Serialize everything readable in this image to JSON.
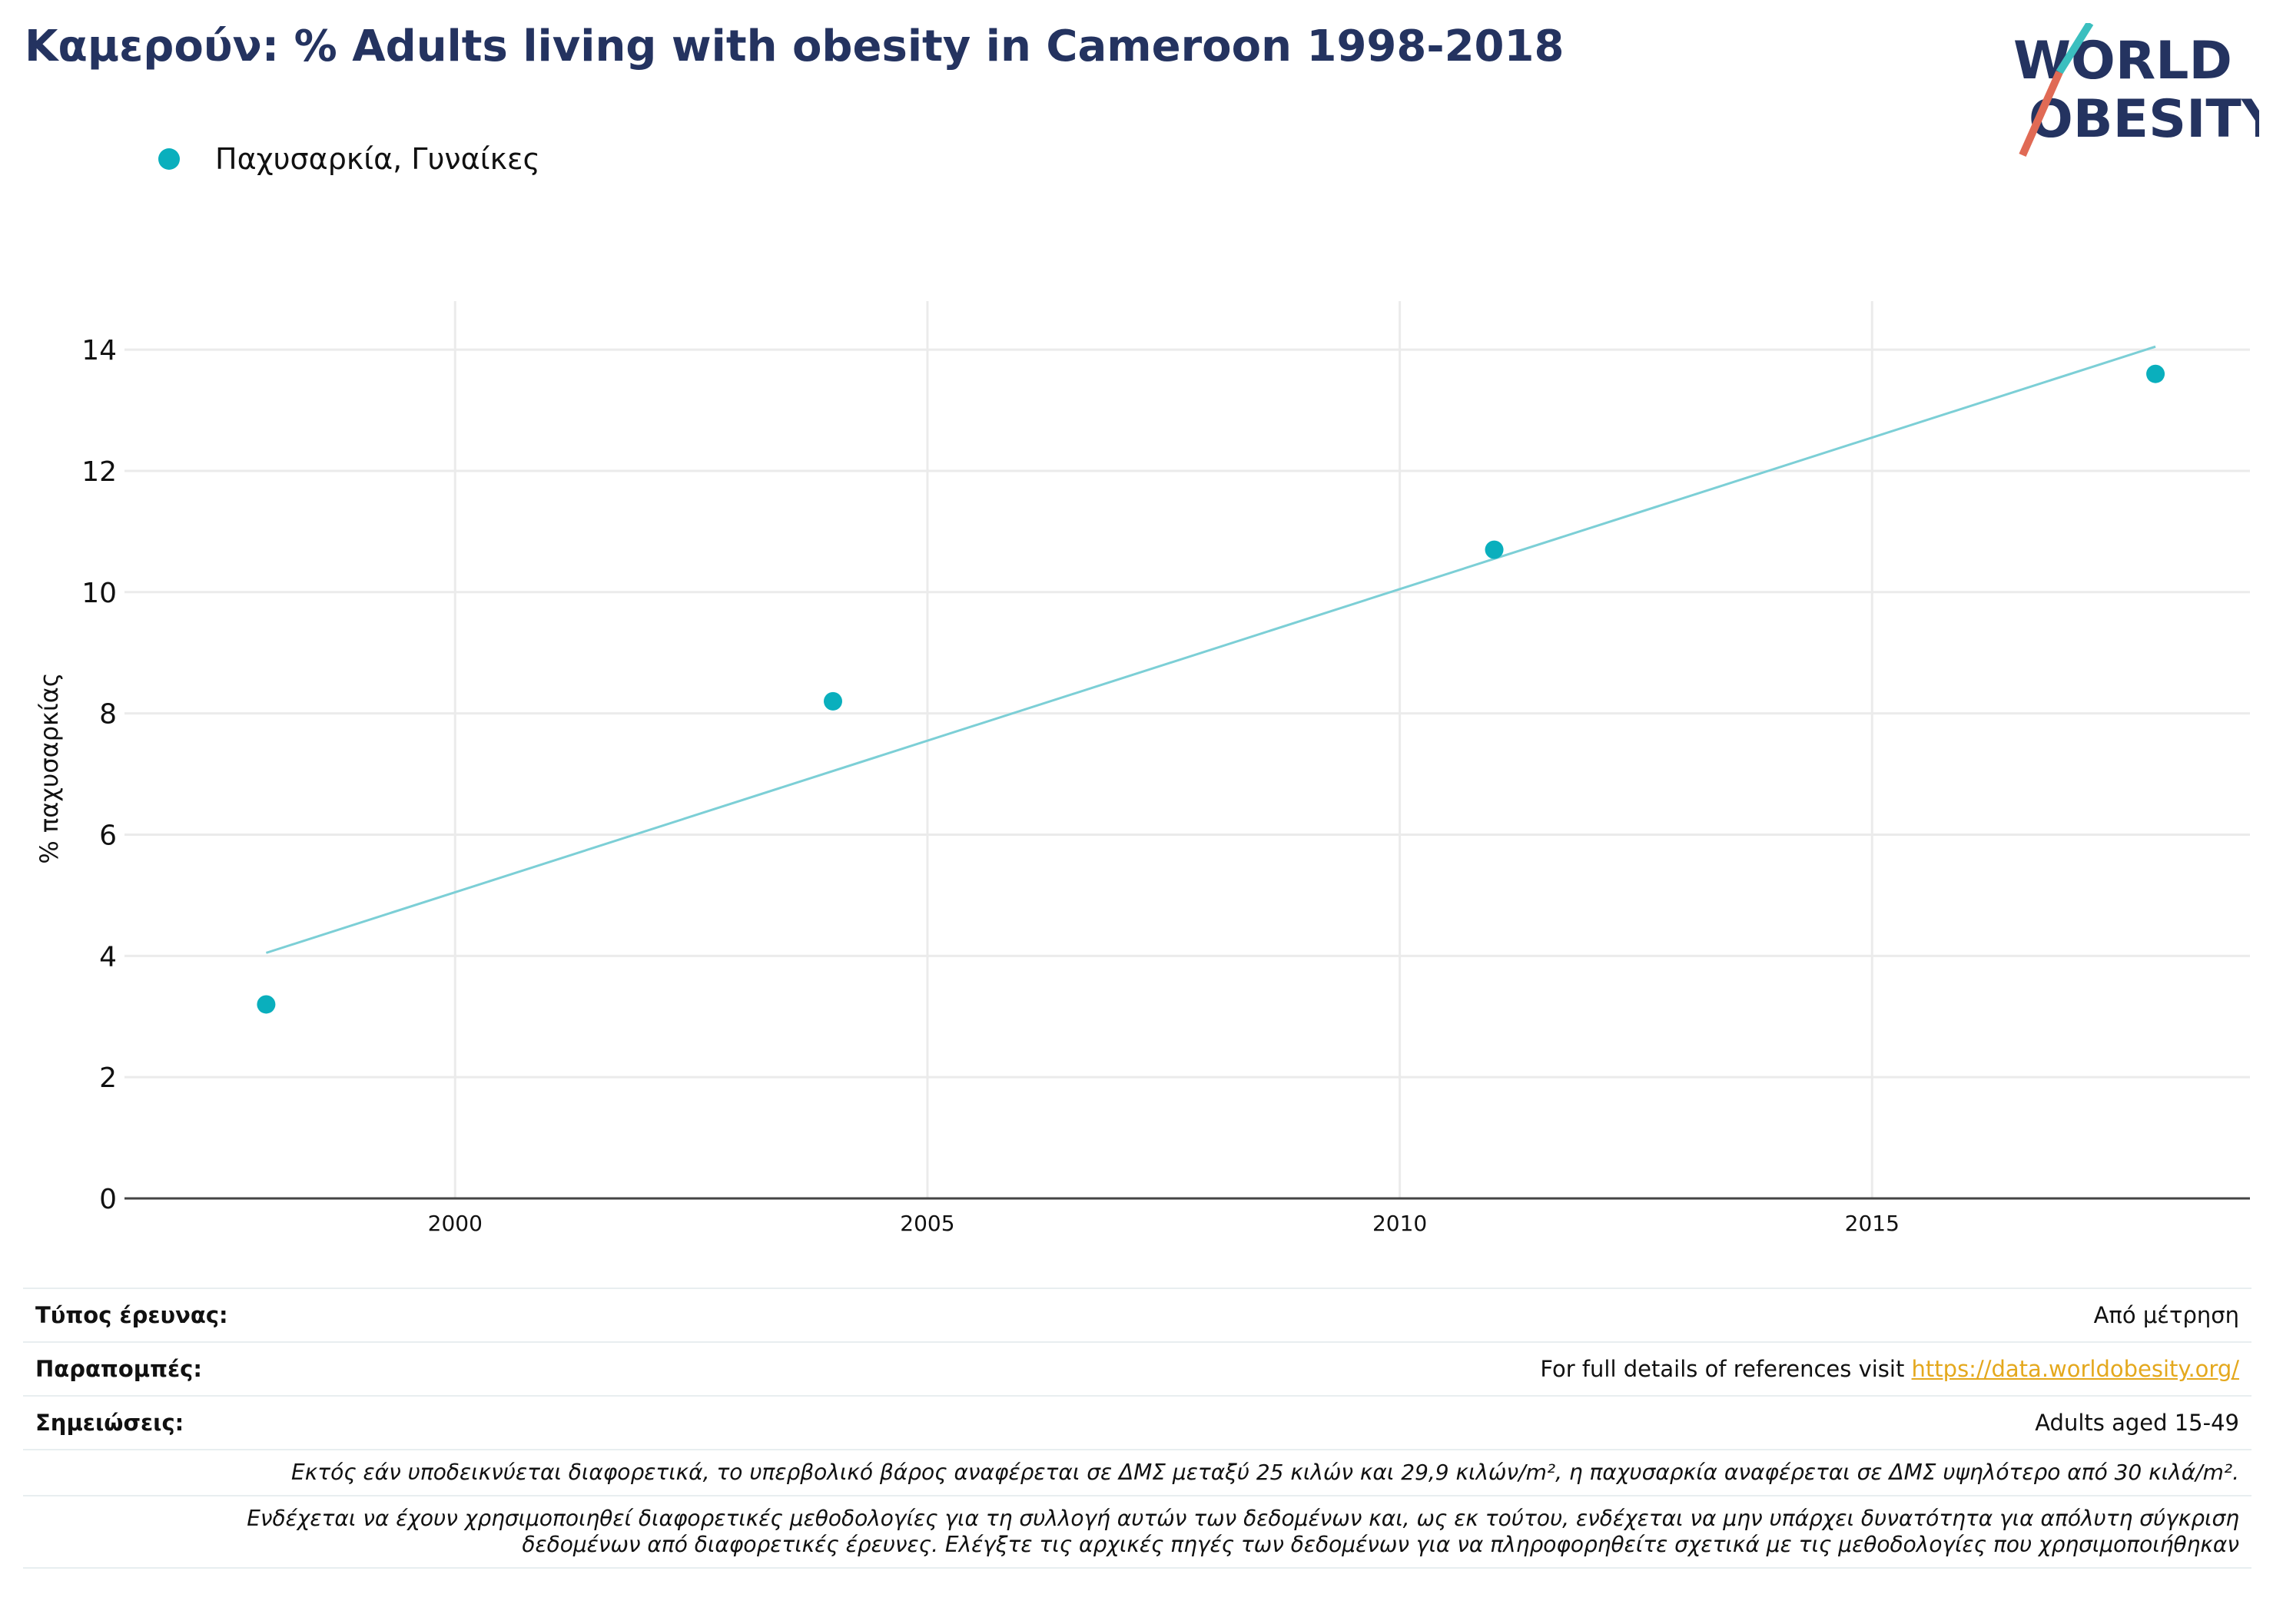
{
  "title": "Καμερούν: % Adults living with obesity in Cameroon 1998-2018",
  "logo": {
    "line1": "WORLD",
    "line2": "OBESITY"
  },
  "colors": {
    "series": "#0aafbd",
    "trend": "#7ccfd6",
    "title": "#243360",
    "link": "#e4a81d"
  },
  "chart_data": {
    "type": "scatter",
    "title": "Καμερούν: % Adults living with obesity in Cameroon 1998-2018",
    "xlabel": "",
    "ylabel": "% παχυσαρκίας",
    "xlim": [
      1996.5,
      2019
    ],
    "ylim": [
      0,
      14.8
    ],
    "xticks": [
      2000,
      2005,
      2010,
      2015
    ],
    "yticks": [
      0,
      2,
      4,
      6,
      8,
      10,
      12,
      14
    ],
    "grid": true,
    "legend": "top-left",
    "series": [
      {
        "name": "Παχυσαρκία, Γυναίκες",
        "x": [
          1998,
          2004,
          2011,
          2018
        ],
        "y": [
          3.2,
          8.2,
          10.7,
          13.6
        ]
      }
    ],
    "trendline": {
      "x": [
        1998,
        2018
      ],
      "y": [
        4.05,
        14.05
      ]
    }
  },
  "info": {
    "survey_type_label": "Τύπος έρευνας:",
    "survey_type_value": "Από μέτρηση",
    "references_label": "Παραπομπές:",
    "references_text": "For full details of references visit ",
    "references_link": "https://data.worldobesity.org/",
    "notes_label": "Σημειώσεις:",
    "notes_value": "Adults aged 15-49",
    "note1": "Εκτός εάν υποδεικνύεται διαφορετικά, το υπερβολικό βάρος αναφέρεται σε ΔΜΣ μεταξύ 25 κιλών και 29,9 κιλών/m², η παχυσαρκία αναφέρεται σε ΔΜΣ υψηλότερο από 30 κιλά/m².",
    "note2_line1": "Ενδέχεται να έχουν χρησιμοποιηθεί διαφορετικές μεθοδολογίες για τη συλλογή αυτών των δεδομένων και, ως εκ τούτου, ενδέχεται να μην υπάρχει δυνατότητα για απόλυτη σύγκριση",
    "note2_line2": "δεδομένων από διαφορετικές έρευνες. Ελέγξτε τις αρχικές πηγές των δεδομένων για να πληροφορηθείτε σχετικά με τις μεθοδολογίες που χρησιμοποιήθηκαν"
  }
}
